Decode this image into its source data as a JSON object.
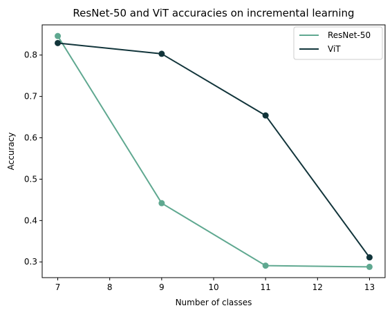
{
  "chart_data": {
    "type": "line",
    "title": "ResNet-50 and ViT accuracies on incremental learning",
    "xlabel": "Number of classes",
    "ylabel": "Accuracy",
    "x": [
      7,
      9,
      11,
      13
    ],
    "xlim": [
      6.7,
      13.3
    ],
    "ylim": [
      0.262,
      0.873
    ],
    "xticks": [
      7,
      8,
      9,
      10,
      11,
      12,
      13
    ],
    "yticks": [
      0.3,
      0.4,
      0.5,
      0.6,
      0.7,
      0.8
    ],
    "xtick_labels": [
      "7",
      "8",
      "9",
      "10",
      "11",
      "12",
      "13"
    ],
    "ytick_labels": [
      "0.3",
      "0.4",
      "0.5",
      "0.6",
      "0.7",
      "0.8"
    ],
    "grid": false,
    "legend_position": "top-right",
    "series": [
      {
        "name": "ResNet-50",
        "color": "#5fa890",
        "values": [
          0.846,
          0.442,
          0.291,
          0.288
        ]
      },
      {
        "name": "ViT",
        "color": "#11343a",
        "values": [
          0.829,
          0.803,
          0.654,
          0.311
        ]
      }
    ]
  }
}
